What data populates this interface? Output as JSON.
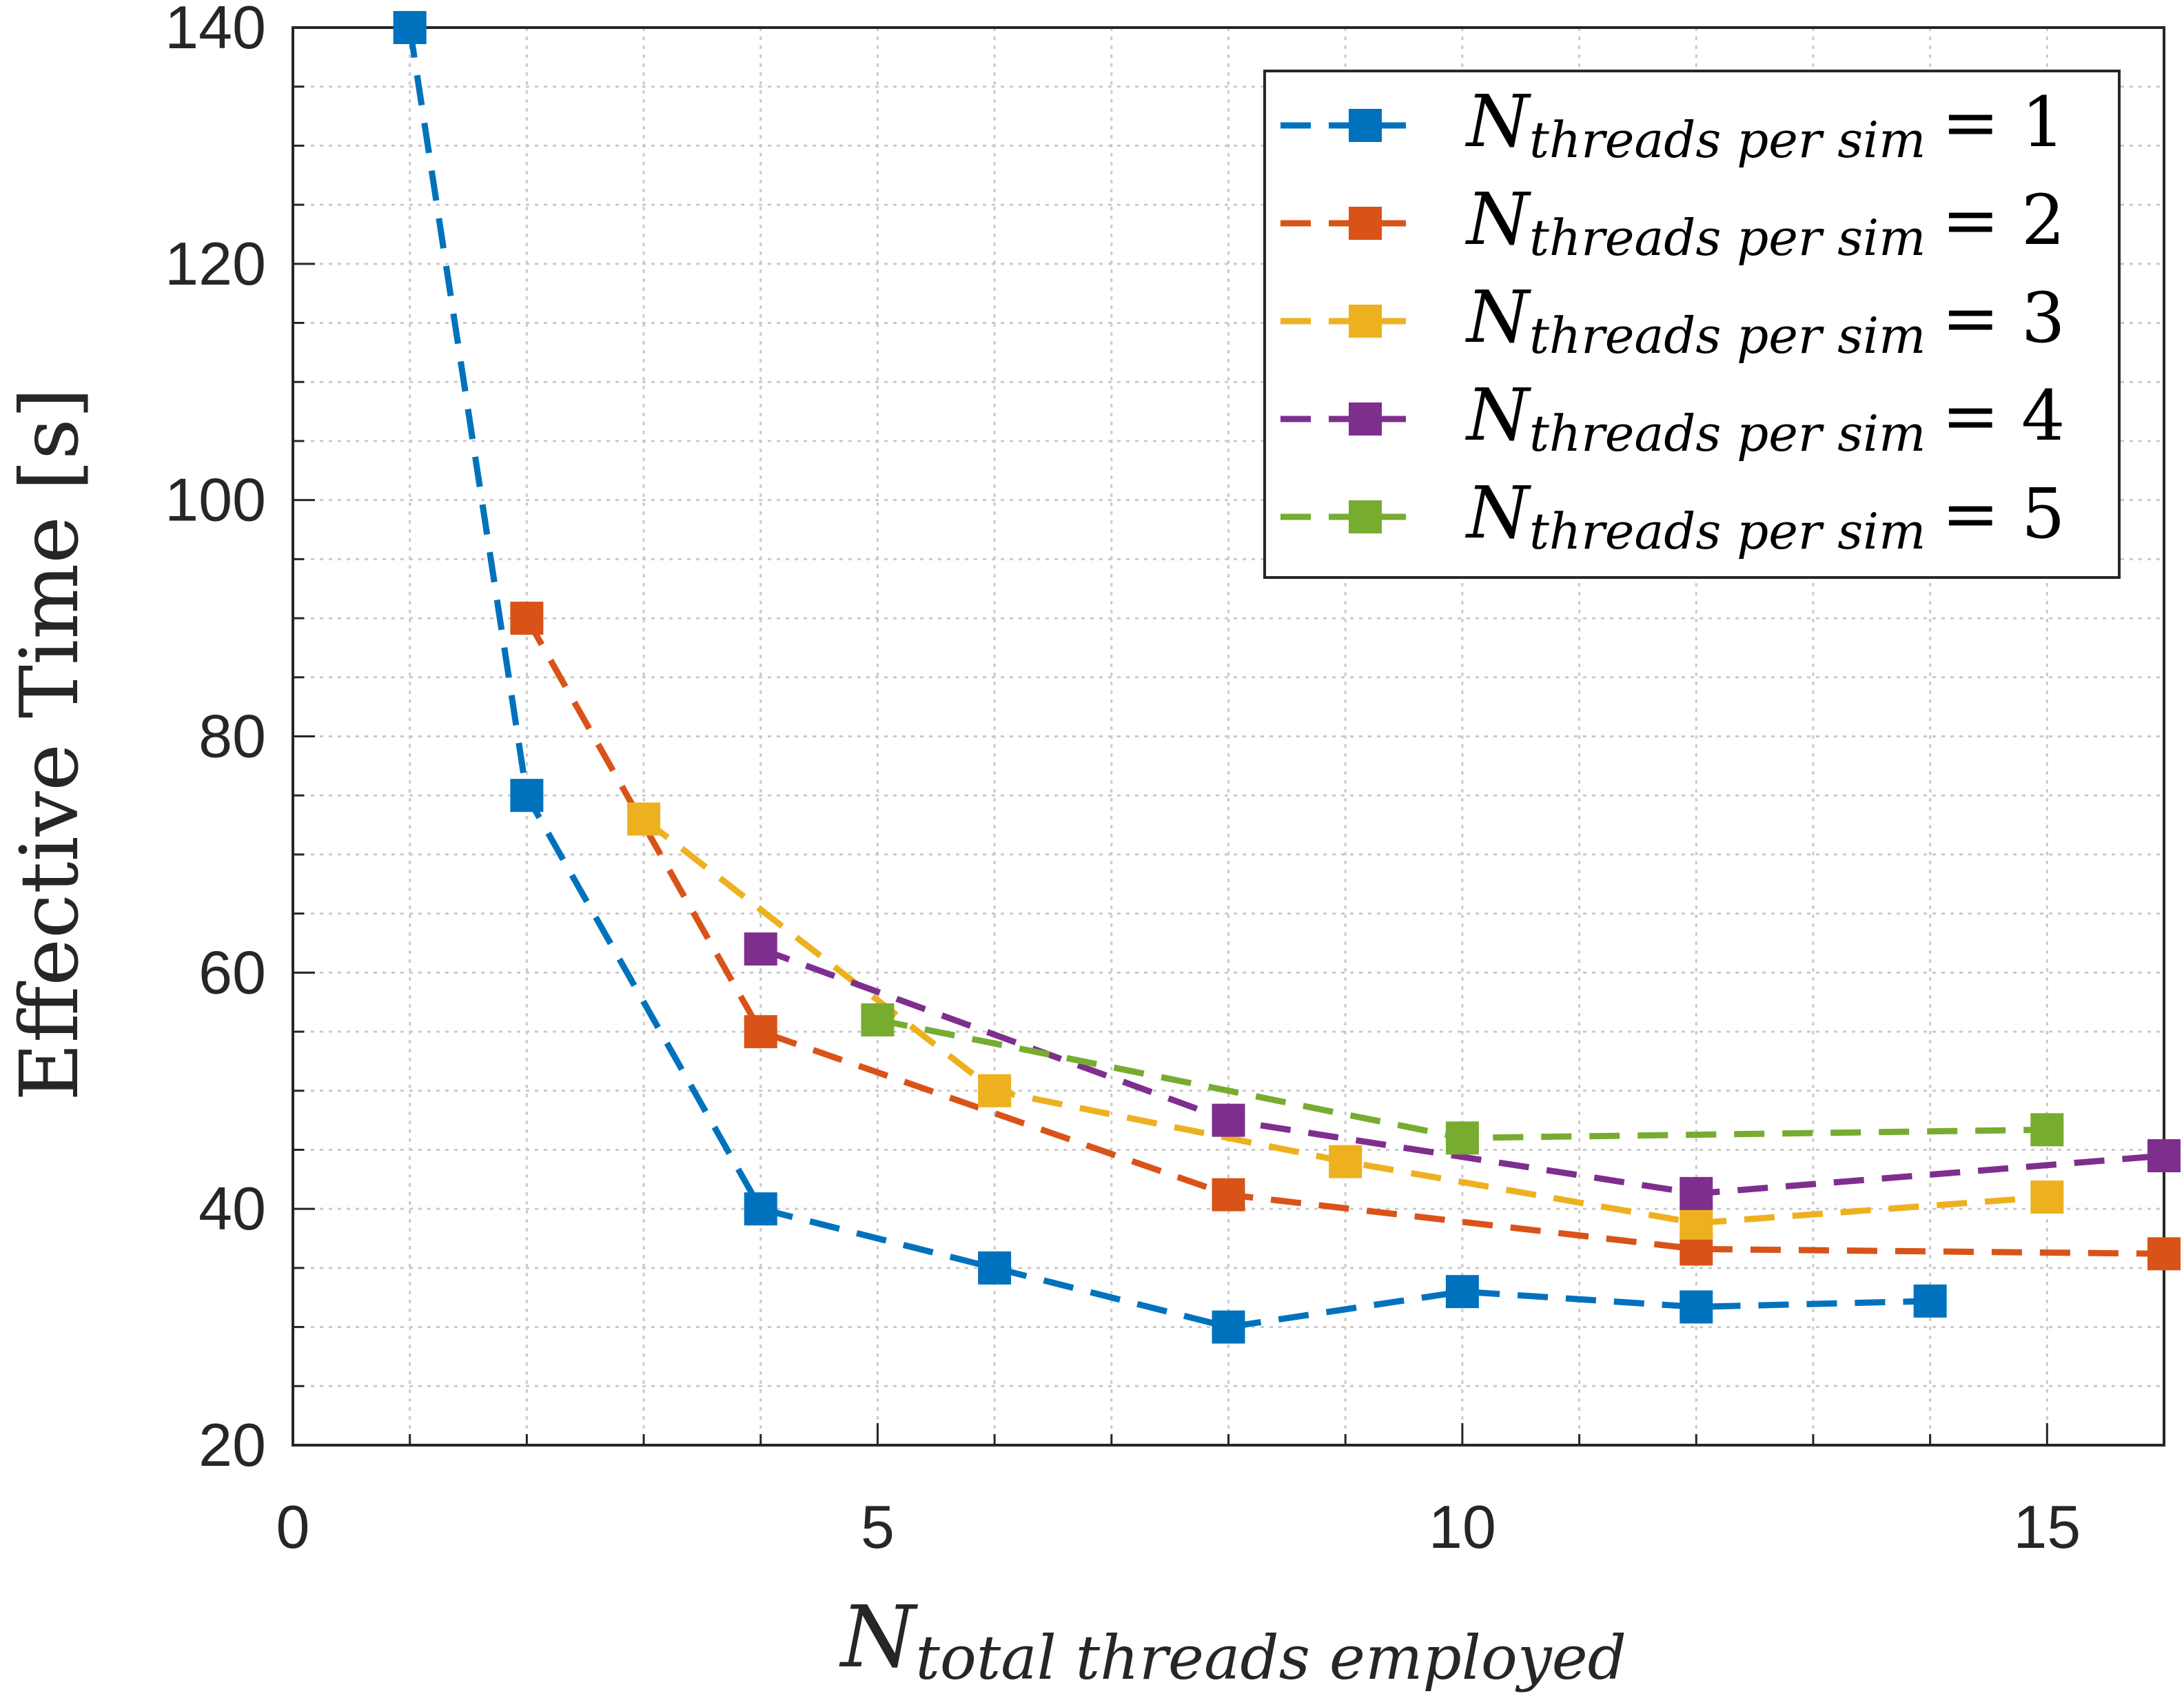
{
  "chart_data": {
    "type": "line",
    "title": "",
    "xlabel": {
      "main": "N",
      "sub": "total threads employed"
    },
    "ylabel": "Effective Time [s]",
    "xlim": [
      0,
      16
    ],
    "ylim": [
      20,
      140
    ],
    "xticks": [
      0,
      5,
      10,
      15
    ],
    "yticks": [
      20,
      40,
      60,
      80,
      100,
      120,
      140
    ],
    "grid": true,
    "minor_grid": true,
    "legend_position": "top-right",
    "line_style": "dashed",
    "marker": "square",
    "series": [
      {
        "name": "N_threads per sim = 1",
        "legend": {
          "main": "N",
          "sub": "threads per sim",
          "eq": "= 1"
        },
        "color": "#0072BD",
        "x": [
          1,
          2,
          4,
          6,
          8,
          10,
          12,
          14
        ],
        "y": [
          140,
          75,
          40,
          35,
          30,
          33,
          31.7,
          32.2
        ]
      },
      {
        "name": "N_threads per sim = 2",
        "legend": {
          "main": "N",
          "sub": "threads per sim",
          "eq": "= 2"
        },
        "color": "#D95319",
        "x": [
          2,
          4,
          8,
          12,
          16
        ],
        "y": [
          90,
          55,
          41.2,
          36.6,
          36.2
        ]
      },
      {
        "name": "N_threads per sim = 3",
        "legend": {
          "main": "N",
          "sub": "threads per sim",
          "eq": "= 3"
        },
        "color": "#EDB120",
        "x": [
          3,
          6,
          9,
          12,
          15
        ],
        "y": [
          73,
          50,
          44,
          38.8,
          41
        ]
      },
      {
        "name": "N_threads per sim = 4",
        "legend": {
          "main": "N",
          "sub": "threads per sim",
          "eq": "= 4"
        },
        "color": "#7E2F8E",
        "x": [
          4,
          8,
          12,
          16
        ],
        "y": [
          62,
          47.5,
          41.3,
          44.5
        ]
      },
      {
        "name": "N_threads per sim = 5",
        "legend": {
          "main": "N",
          "sub": "threads per sim",
          "eq": "= 5"
        },
        "color": "#77AC30",
        "x": [
          5,
          10,
          15
        ],
        "y": [
          56,
          46,
          46.7
        ]
      }
    ]
  }
}
